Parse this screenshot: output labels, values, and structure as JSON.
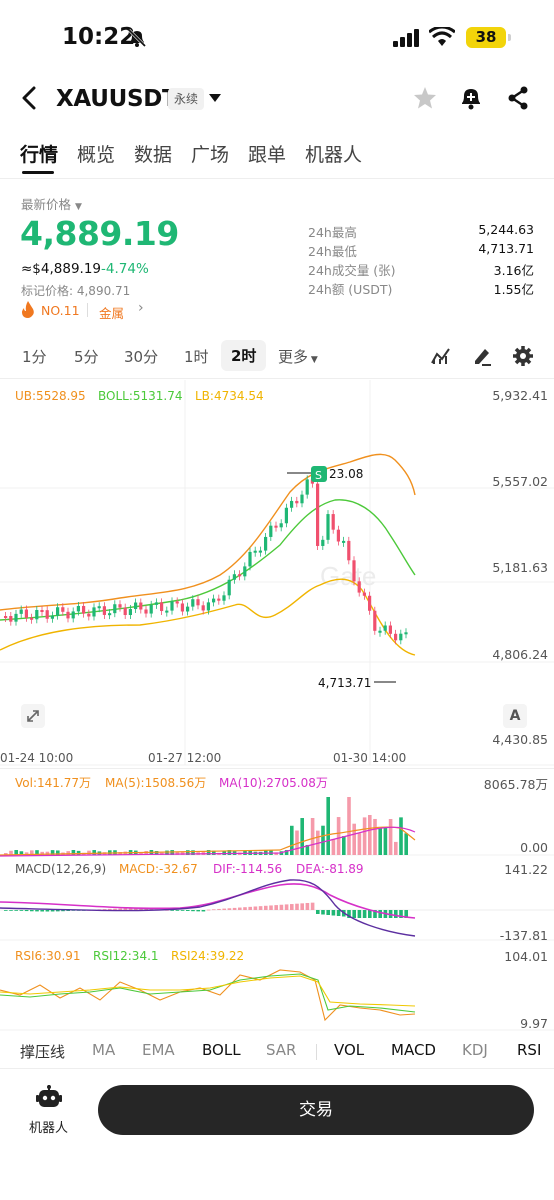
{
  "status_bar": {
    "time": "10:22",
    "battery": "38"
  },
  "header": {
    "symbol": "XAUUSDT",
    "contract_type": "永续"
  },
  "tabs": [
    "行情",
    "概览",
    "数据",
    "广场",
    "跟单",
    "机器人"
  ],
  "ticker": {
    "latest_label": "最新价格",
    "price": "4,889.19",
    "usd_approx": "≈$4,889.19",
    "change_pct": "-4.74%",
    "mark_price": "标记价格: 4,890.71",
    "rank": "NO.11",
    "category": "金属",
    "stats": [
      {
        "label": "24h最高",
        "value": "5,244.63"
      },
      {
        "label": "24h最低",
        "value": "4,713.71"
      },
      {
        "label": "24h成交量 (张)",
        "value": "3.16亿"
      },
      {
        "label": "24h额 (USDT)",
        "value": "1.55亿"
      }
    ]
  },
  "timeframes": [
    "1分",
    "5分",
    "30分",
    "1时",
    "2时",
    "更多"
  ],
  "timeframe_selected": "2时",
  "main_chart": {
    "boll": {
      "ub": "UB:5528.95",
      "boll": "BOLL:5131.74",
      "lb": "LB:4734.54"
    },
    "y_axis": [
      "5,932.41",
      "5,557.02",
      "5,181.63",
      "4,806.24",
      "4,430.85"
    ],
    "x_axis": [
      "01-24 10:00",
      "01-27 12:00",
      "01-30 14:00"
    ],
    "high_marker": "23.08",
    "sell_badge": "S",
    "low_marker": "4,713.71",
    "watermark": "Gate",
    "axis_mode": "A"
  },
  "volume": {
    "vol": "Vol:141.77万",
    "ma5": "MA(5):1508.56万",
    "ma10": "MA(10):2705.08万",
    "y_top": "8065.78万",
    "y_bottom": "0.00"
  },
  "macd": {
    "title": "MACD(12,26,9)",
    "macd": "MACD:-32.67",
    "dif": "DIF:-114.56",
    "dea": "DEA:-81.89",
    "y_top": "141.22",
    "y_bottom": "-137.81"
  },
  "rsi": {
    "rsi6": "RSI6:30.91",
    "rsi12": "RSI12:34.1",
    "rsi24": "RSI24:39.22",
    "y_top": "104.01",
    "y_bottom": "9.97"
  },
  "indicator_tabs": [
    "撑压线",
    "MA",
    "EMA",
    "BOLL",
    "SAR",
    "VOL",
    "MACD",
    "KDJ",
    "RSI"
  ],
  "bottom": {
    "robot_label": "机器人",
    "trade": "交易"
  },
  "colors": {
    "up": "#1fb774",
    "down": "#f0506e",
    "ub": "#f0901e",
    "boll": "#4cc93a",
    "lb": "#f0b400",
    "macd_dea": "#d630c8"
  }
}
